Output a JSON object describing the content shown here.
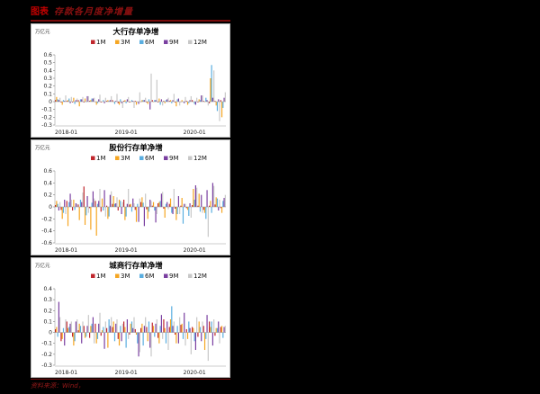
{
  "figure": {
    "label": "图表",
    "title_text": "存款各月度净增量",
    "source_text": "资料来源：Wind，"
  },
  "colors": {
    "1M": "#c0272d",
    "3M": "#f5a623",
    "6M": "#5aaee0",
    "9M": "#7a3fa0",
    "12M": "#c8c8c8",
    "background": "#000000",
    "panel": "#ffffff"
  },
  "chart_data": [
    {
      "type": "bar",
      "title": "大行存单净增",
      "ylabel": "万亿元",
      "ylim": [
        -0.3,
        0.6
      ],
      "yticks": [
        -0.3,
        -0.2,
        -0.1,
        0,
        0.1,
        0.2,
        0.3,
        0.4,
        0.5,
        0.6
      ],
      "xtick_labels": [
        "2018-01",
        "2019-01",
        "2020-01"
      ],
      "legend": [
        "1M",
        "3M",
        "6M",
        "9M",
        "12M"
      ],
      "legend_position": "top",
      "grid": false,
      "series": [
        {
          "name": "1M",
          "values": [
            0.02,
            -0.01,
            0.01,
            -0.01,
            0.02,
            -0.01,
            0.01,
            0.0,
            -0.01,
            0.01,
            0.02,
            -0.02,
            0.01,
            -0.01,
            0.01,
            0.0,
            -0.01,
            0.02,
            -0.01,
            0.01,
            0.01,
            -0.01,
            0.0,
            0.01,
            0.02,
            -0.01,
            0.01,
            -0.02,
            0.01,
            0.02
          ]
        },
        {
          "name": "3M",
          "values": [
            0.06,
            -0.04,
            0.02,
            0.05,
            -0.06,
            0.04,
            0.02,
            -0.04,
            0.0,
            0.02,
            0.0,
            -0.04,
            0.02,
            0.0,
            -0.04,
            0.02,
            -0.03,
            0.0,
            0.04,
            -0.02,
            0.02,
            -0.06,
            0.02,
            -0.04,
            0.0,
            0.03,
            0.0,
            0.3,
            -0.05,
            -0.2
          ]
        },
        {
          "name": "6M",
          "values": [
            0.03,
            0.02,
            0.04,
            -0.03,
            0.03,
            0.0,
            0.04,
            -0.02,
            0.02,
            0.01,
            -0.03,
            0.03,
            -0.02,
            0.02,
            0.0,
            0.02,
            0.03,
            0.02,
            -0.04,
            0.02,
            -0.02,
            0.03,
            0.0,
            -0.02,
            -0.03,
            0.02,
            0.05,
            0.47,
            -0.12,
            -0.08
          ]
        },
        {
          "name": "9M",
          "values": [
            0.02,
            0.01,
            -0.02,
            0.02,
            0.03,
            0.07,
            0.04,
            0.03,
            -0.02,
            0.02,
            0.01,
            -0.02,
            0.03,
            0.01,
            -0.03,
            0.02,
            -0.1,
            0.02,
            0.03,
            0.03,
            0.02,
            0.04,
            -0.02,
            0.02,
            -0.04,
            0.08,
            0.02,
            0.05,
            0.03,
            0.05
          ]
        },
        {
          "name": "12M",
          "values": [
            0.05,
            0.08,
            0.06,
            0.04,
            0.06,
            0.07,
            0.05,
            0.09,
            0.05,
            0.07,
            0.1,
            -0.08,
            0.06,
            -0.08,
            0.12,
            0.05,
            0.36,
            0.28,
            -0.05,
            0.05,
            0.1,
            -0.05,
            0.06,
            0.07,
            0.05,
            0.08,
            -0.05,
            0.4,
            -0.25,
            0.12
          ]
        }
      ]
    },
    {
      "type": "bar",
      "title": "股份行存单净增",
      "ylabel": "万亿元",
      "ylim": [
        -0.6,
        0.6
      ],
      "yticks": [
        -0.6,
        -0.4,
        -0.2,
        0,
        0.2,
        0.4,
        0.6
      ],
      "xtick_labels": [
        "2018-01",
        "2019-01",
        "2020-01"
      ],
      "legend": [
        "1M",
        "3M",
        "6M",
        "9M",
        "12M"
      ],
      "legend_position": "top",
      "grid": false,
      "series": [
        {
          "name": "1M",
          "values": [
            0.03,
            -0.05,
            0.1,
            -0.06,
            0.04,
            0.34,
            -0.02,
            0.1,
            -0.08,
            0.02,
            0.05,
            -0.06,
            0.12,
            0.04,
            -0.05,
            0.08,
            -0.04,
            0.02,
            0.06,
            -0.03,
            0.05,
            -0.03,
            0.02,
            -0.02,
            0.03,
            0.02,
            -0.05,
            0.02,
            0.04,
            -0.02
          ]
        },
        {
          "name": "3M",
          "values": [
            0.1,
            -0.2,
            -0.32,
            0.12,
            -0.22,
            -0.3,
            -0.38,
            -0.48,
            0.14,
            -0.2,
            0.18,
            0.12,
            -0.22,
            0.05,
            -0.25,
            0.16,
            -0.2,
            0.08,
            0.08,
            -0.18,
            0.14,
            -0.22,
            0.15,
            -0.05,
            0.3,
            0.22,
            -0.1,
            0.1,
            0.16,
            -0.1
          ]
        },
        {
          "name": "6M",
          "values": [
            0.05,
            -0.1,
            0.08,
            -0.05,
            0.12,
            -0.14,
            0.07,
            0.05,
            -0.06,
            -0.16,
            0.05,
            0.1,
            -0.16,
            -0.08,
            0.05,
            0.07,
            -0.08,
            -0.06,
            0.1,
            0.05,
            -0.1,
            -0.12,
            -0.28,
            -0.15,
            0.12,
            -0.08,
            -0.2,
            -0.1,
            0.14,
            0.1
          ]
        },
        {
          "name": "9M",
          "values": [
            -0.06,
            0.12,
            0.22,
            0.06,
            0.08,
            0.18,
            0.26,
            0.1,
            0.28,
            0.2,
            0.06,
            -0.12,
            0.05,
            0.14,
            -0.25,
            -0.32,
            0.12,
            -0.26,
            0.22,
            0.08,
            -0.12,
            0.18,
            0.05,
            0.06,
            0.36,
            0.2,
            0.28,
            0.4,
            -0.06,
            0.15
          ]
        },
        {
          "name": "12M",
          "values": [
            0.08,
            -0.12,
            0.12,
            0.05,
            0.24,
            -0.1,
            0.14,
            0.3,
            -0.16,
            0.26,
            0.16,
            0.08,
            0.3,
            0.06,
            0.14,
            0.22,
            0.1,
            -0.12,
            0.25,
            -0.04,
            0.3,
            -0.12,
            0.05,
            -0.18,
            0.32,
            -0.1,
            -0.5,
            0.35,
            0.12,
            0.2
          ]
        }
      ]
    },
    {
      "type": "bar",
      "title": "城商行存单净增",
      "ylabel": "万亿元",
      "ylim": [
        -0.3,
        0.4
      ],
      "yticks": [
        -0.3,
        -0.2,
        -0.1,
        0,
        0.1,
        0.2,
        0.3,
        0.4
      ],
      "xtick_labels": [
        "2018-01",
        "2019-01",
        "2020-01"
      ],
      "legend": [
        "1M",
        "3M",
        "6M",
        "9M",
        "12M"
      ],
      "legend_position": "top",
      "grid": false,
      "series": [
        {
          "name": "1M",
          "values": [
            0.03,
            -0.08,
            0.1,
            -0.04,
            0.02,
            0.06,
            -0.05,
            0.08,
            -0.03,
            0.04,
            0.05,
            -0.06,
            0.1,
            -0.02,
            0.03,
            0.04,
            0.05,
            0.09,
            -0.05,
            0.12,
            0.05,
            -0.02,
            0.07,
            0.03,
            0.05,
            -0.04,
            0.06,
            0.1,
            -0.03,
            0.05
          ]
        },
        {
          "name": "3M",
          "values": [
            0.05,
            -0.06,
            0.04,
            -0.12,
            0.08,
            -0.05,
            0.06,
            -0.1,
            0.02,
            -0.14,
            0.1,
            -0.12,
            0.05,
            0.08,
            -0.02,
            0.08,
            -0.08,
            0.06,
            -0.1,
            0.04,
            0.12,
            -0.1,
            0.08,
            -0.06,
            0.04,
            0.1,
            -0.16,
            0.05,
            0.04,
            0.06
          ]
        },
        {
          "name": "6M",
          "values": [
            -0.04,
            0.04,
            0.05,
            -0.08,
            0.06,
            -0.04,
            0.08,
            -0.06,
            0.05,
            0.12,
            -0.08,
            0.06,
            -0.14,
            0.1,
            -0.1,
            -0.12,
            0.1,
            -0.04,
            0.06,
            -0.1,
            0.24,
            0.06,
            -0.06,
            0.1,
            -0.08,
            0.05,
            -0.06,
            0.1,
            0.04,
            -0.05
          ]
        },
        {
          "name": "9M",
          "values": [
            0.28,
            -0.12,
            0.08,
            0.1,
            -0.1,
            0.06,
            0.14,
            0.08,
            -0.15,
            0.06,
            0.08,
            -0.08,
            0.12,
            0.04,
            -0.22,
            0.06,
            -0.14,
            0.08,
            0.16,
            0.1,
            0.06,
            -0.1,
            0.18,
            0.04,
            -0.16,
            -0.08,
            0.16,
            -0.12,
            0.1,
            0.05
          ]
        },
        {
          "name": "12M",
          "values": [
            0.14,
            0.12,
            0.1,
            0.12,
            0.1,
            0.16,
            -0.1,
            0.18,
            0.1,
            0.14,
            0.12,
            0.08,
            -0.06,
            0.14,
            -0.18,
            0.14,
            -0.22,
            0.12,
            -0.06,
            -0.16,
            0.1,
            0.14,
            -0.12,
            -0.2,
            0.14,
            0.1,
            -0.26,
            0.12,
            -0.1,
            0.06
          ]
        }
      ]
    }
  ]
}
